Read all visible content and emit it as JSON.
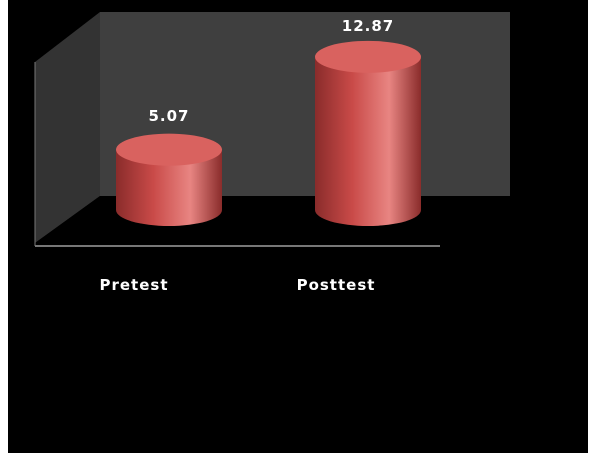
{
  "chart_data": {
    "type": "bar",
    "style": "3d-cylinder",
    "categories": [
      "Pretest",
      "Posttest"
    ],
    "values": [
      5.07,
      12.87
    ],
    "value_labels": [
      "5.07",
      "12.87"
    ],
    "title": "",
    "xlabel": "",
    "ylabel": "",
    "ylim": [
      0,
      14
    ],
    "grid": false,
    "legend": "none"
  },
  "colors": {
    "background": "#000000",
    "back_wall": "#3f3f3f",
    "side_wall": "#333333",
    "floor": "#000000",
    "bar_fill": "#c94a48",
    "bar_top": "#d9625f",
    "bar_highlight": "#e88582",
    "bar_shadow": "#8a2c2b",
    "axis_line": "#777777"
  }
}
